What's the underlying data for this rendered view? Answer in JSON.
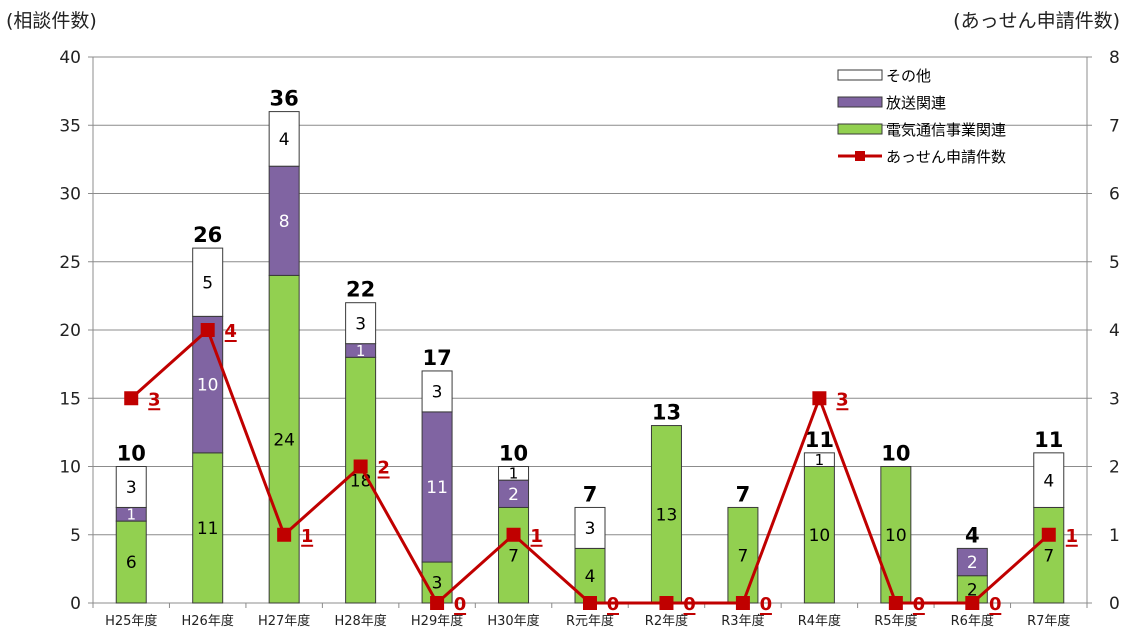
{
  "chart_data": {
    "type": "bar",
    "stacked": true,
    "categories": [
      "H25年度",
      "H26年度",
      "H27年度",
      "H28年度",
      "H29年度",
      "H30年度",
      "R元年度",
      "R2年度",
      "R3年度",
      "R4年度",
      "R5年度",
      "R6年度",
      "R7年度"
    ],
    "left_axis_label": "(相談件数)",
    "right_axis_label": "(あっせん申請件数)",
    "ylim": [
      0,
      40
    ],
    "ylim_right": [
      0,
      8
    ],
    "yticks": [
      0,
      5,
      10,
      15,
      20,
      25,
      30,
      35,
      40
    ],
    "yticks_right": [
      0,
      1,
      2,
      3,
      4,
      5,
      6,
      7,
      8
    ],
    "grid": true,
    "legend_position": "top-right",
    "totals": [
      10,
      26,
      36,
      22,
      17,
      10,
      7,
      13,
      7,
      11,
      10,
      4,
      11
    ],
    "series": [
      {
        "name": "電気通信事業関連",
        "kind": "bar",
        "color": "#92d050",
        "label_color": "#000000",
        "values": [
          6,
          11,
          24,
          18,
          3,
          7,
          4,
          13,
          7,
          10,
          10,
          2,
          7
        ]
      },
      {
        "name": "放送関連",
        "kind": "bar",
        "color": "#8064a2",
        "label_color": "#ffffff",
        "values": [
          1,
          10,
          8,
          1,
          11,
          2,
          0,
          0,
          0,
          0,
          0,
          2,
          0
        ]
      },
      {
        "name": "その他",
        "kind": "bar",
        "color": "#ffffff",
        "label_color": "#000000",
        "values": [
          3,
          5,
          4,
          3,
          3,
          1,
          3,
          0,
          0,
          1,
          0,
          0,
          4
        ]
      },
      {
        "name": "あっせん申請件数",
        "kind": "line",
        "axis": "right",
        "color": "#c00000",
        "values": [
          3,
          4,
          1,
          2,
          0,
          1,
          0,
          0,
          0,
          3,
          0,
          0,
          1
        ]
      }
    ]
  }
}
